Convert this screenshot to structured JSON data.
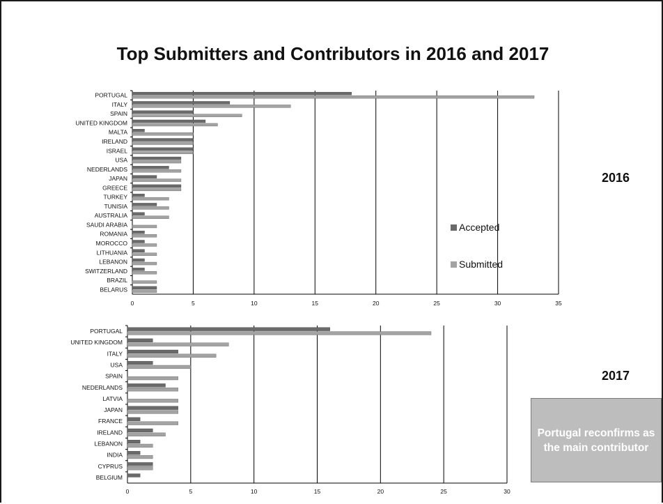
{
  "title": "Top Submitters and Contributors in 2016 and 2017",
  "year_labels": [
    "2016",
    "2017"
  ],
  "callout": "Portugal reconfirms as the main contributor",
  "legend": {
    "accepted": "Accepted",
    "submitted": "Submitted",
    "legend_position": "right"
  },
  "colors": {
    "accepted": "#6a6a6a",
    "submitted": "#a3a3a3",
    "grid": "#000000"
  },
  "chart_data": [
    {
      "type": "bar",
      "orientation": "horizontal",
      "year": "2016",
      "categories": [
        "PORTUGAL",
        "ITALY",
        "SPAIN",
        "UNITED KINGDOM",
        "MALTA",
        "IRELAND",
        "ISRAEL",
        "USA",
        "NEDERLANDS",
        "JAPAN",
        "GREECE",
        "TURKEY",
        "TUNISIA",
        "AUSTRALIA",
        "SAUDI ARABIA",
        "ROMANIA",
        "MOROCCO",
        "LITHUANIA",
        "LEBANON",
        "SWITZERLAND",
        "BRAZIL",
        "BELARUS"
      ],
      "series": [
        {
          "name": "Accepted",
          "values": [
            18,
            8,
            5,
            6,
            1,
            5,
            5,
            4,
            3,
            2,
            4,
            1,
            2,
            1,
            0,
            1,
            1,
            1,
            1,
            1,
            0,
            2
          ]
        },
        {
          "name": "Submitted",
          "values": [
            33,
            13,
            9,
            7,
            5,
            5,
            5,
            4,
            4,
            4,
            4,
            3,
            3,
            3,
            2,
            2,
            2,
            2,
            2,
            2,
            2,
            2
          ]
        }
      ],
      "xlim": [
        0,
        35
      ],
      "xticks": [
        0,
        5,
        10,
        15,
        20,
        25,
        30,
        35
      ],
      "grid": true,
      "legend_position": "right"
    },
    {
      "type": "bar",
      "orientation": "horizontal",
      "year": "2017",
      "categories": [
        "PORTUGAL",
        "UNITED KINGDOM",
        "ITALY",
        "USA",
        "SPAIN",
        "NEDERLANDS",
        "LATVIA",
        "JAPAN",
        "FRANCE",
        "IRELAND",
        "LEBANON",
        "INDIA",
        "CYPRUS",
        "BELGIUM"
      ],
      "series": [
        {
          "name": "Accepted",
          "values": [
            16,
            2,
            4,
            2,
            0,
            3,
            0,
            4,
            1,
            2,
            1,
            1,
            2,
            1
          ]
        },
        {
          "name": "Submitted",
          "values": [
            24,
            8,
            7,
            5,
            4,
            4,
            4,
            4,
            4,
            3,
            2,
            2,
            2,
            0
          ]
        }
      ],
      "xlim": [
        0,
        30
      ],
      "xticks": [
        0,
        5,
        10,
        15,
        20,
        25,
        30
      ],
      "grid": true
    }
  ]
}
